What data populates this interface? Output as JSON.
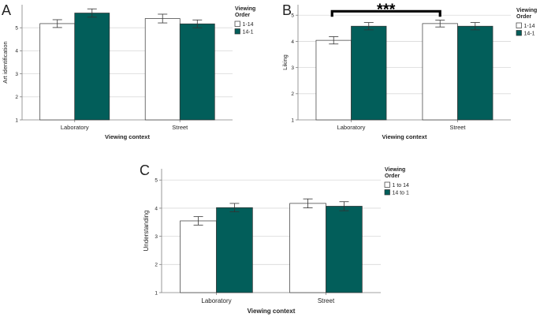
{
  "colors": {
    "teal": "#025e5a",
    "white_bar": "#ffffff",
    "grid": "#d9d9d9",
    "axis": "#808080",
    "bar_stroke": "#333333",
    "text": "#222222",
    "sig_bar": "#000000"
  },
  "chart_data": [
    {
      "panel_label": "A",
      "type": "bar",
      "ylabel": "Art identification",
      "xlabel": "Viewing context",
      "categories": [
        "Laboratory",
        "Street"
      ],
      "ylim": [
        1,
        6
      ],
      "ticks": [
        1,
        2,
        3,
        4,
        5
      ],
      "grid": true,
      "legend_title": [
        "Viewing",
        "Order"
      ],
      "series": [
        {
          "name": "1-14",
          "color": "#ffffff",
          "values": [
            5.18,
            5.4
          ],
          "errors": [
            0.17,
            0.19
          ]
        },
        {
          "name": "14-1",
          "color": "#025e5a",
          "values": [
            5.64,
            5.17
          ],
          "errors": [
            0.18,
            0.17
          ]
        }
      ]
    },
    {
      "panel_label": "B",
      "type": "bar",
      "ylabel": "Liking",
      "xlabel": "Viewing context",
      "categories": [
        "Laboratory",
        "Street"
      ],
      "ylim": [
        1,
        5.4
      ],
      "ticks": [
        1,
        2,
        3,
        4,
        5
      ],
      "grid": true,
      "legend_title": [
        "Viewing",
        "Order"
      ],
      "significance": {
        "label": "***",
        "from": 0,
        "to": 1,
        "y": 5.15
      },
      "series": [
        {
          "name": "1-14",
          "color": "#ffffff",
          "values": [
            4.04,
            4.68
          ],
          "errors": [
            0.14,
            0.13
          ]
        },
        {
          "name": "14-1",
          "color": "#025e5a",
          "values": [
            4.58,
            4.58
          ],
          "errors": [
            0.14,
            0.14
          ]
        }
      ]
    },
    {
      "panel_label": "C",
      "type": "bar",
      "ylabel": "Understanding",
      "xlabel": "Viewing context",
      "categories": [
        "Laboratory",
        "Street"
      ],
      "ylim": [
        1,
        5.4
      ],
      "ticks": [
        1,
        2,
        3,
        4,
        5
      ],
      "grid": true,
      "legend_title": [
        "Viewing",
        "Order"
      ],
      "series": [
        {
          "name": "1 to 14",
          "color": "#ffffff",
          "values": [
            3.55,
            4.17
          ],
          "errors": [
            0.15,
            0.16
          ]
        },
        {
          "name": "14 to 1",
          "color": "#025e5a",
          "values": [
            4.02,
            4.07
          ],
          "errors": [
            0.15,
            0.16
          ]
        }
      ]
    }
  ]
}
